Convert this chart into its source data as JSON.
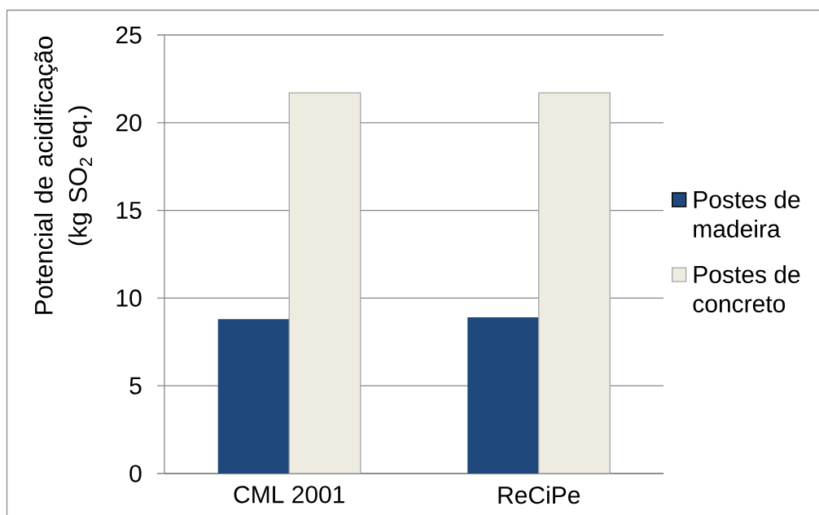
{
  "chart_data": {
    "type": "bar",
    "ylabel": "Potencial de acidificação (kg SO$_{2}$ eq.)",
    "categories": [
      "CML 2001",
      "ReCiPe"
    ],
    "series": [
      {
        "name": "Postes de madeira",
        "color": "#1f497d",
        "values": [
          8.8,
          8.9
        ]
      },
      {
        "name": "Postes de concreto",
        "color": "#eeece1",
        "values": [
          21.7,
          21.7
        ]
      }
    ],
    "ylim": [
      0,
      25
    ],
    "yticks": [
      0,
      5,
      10,
      15,
      20,
      25
    ],
    "grid": "y",
    "legend": "right"
  }
}
